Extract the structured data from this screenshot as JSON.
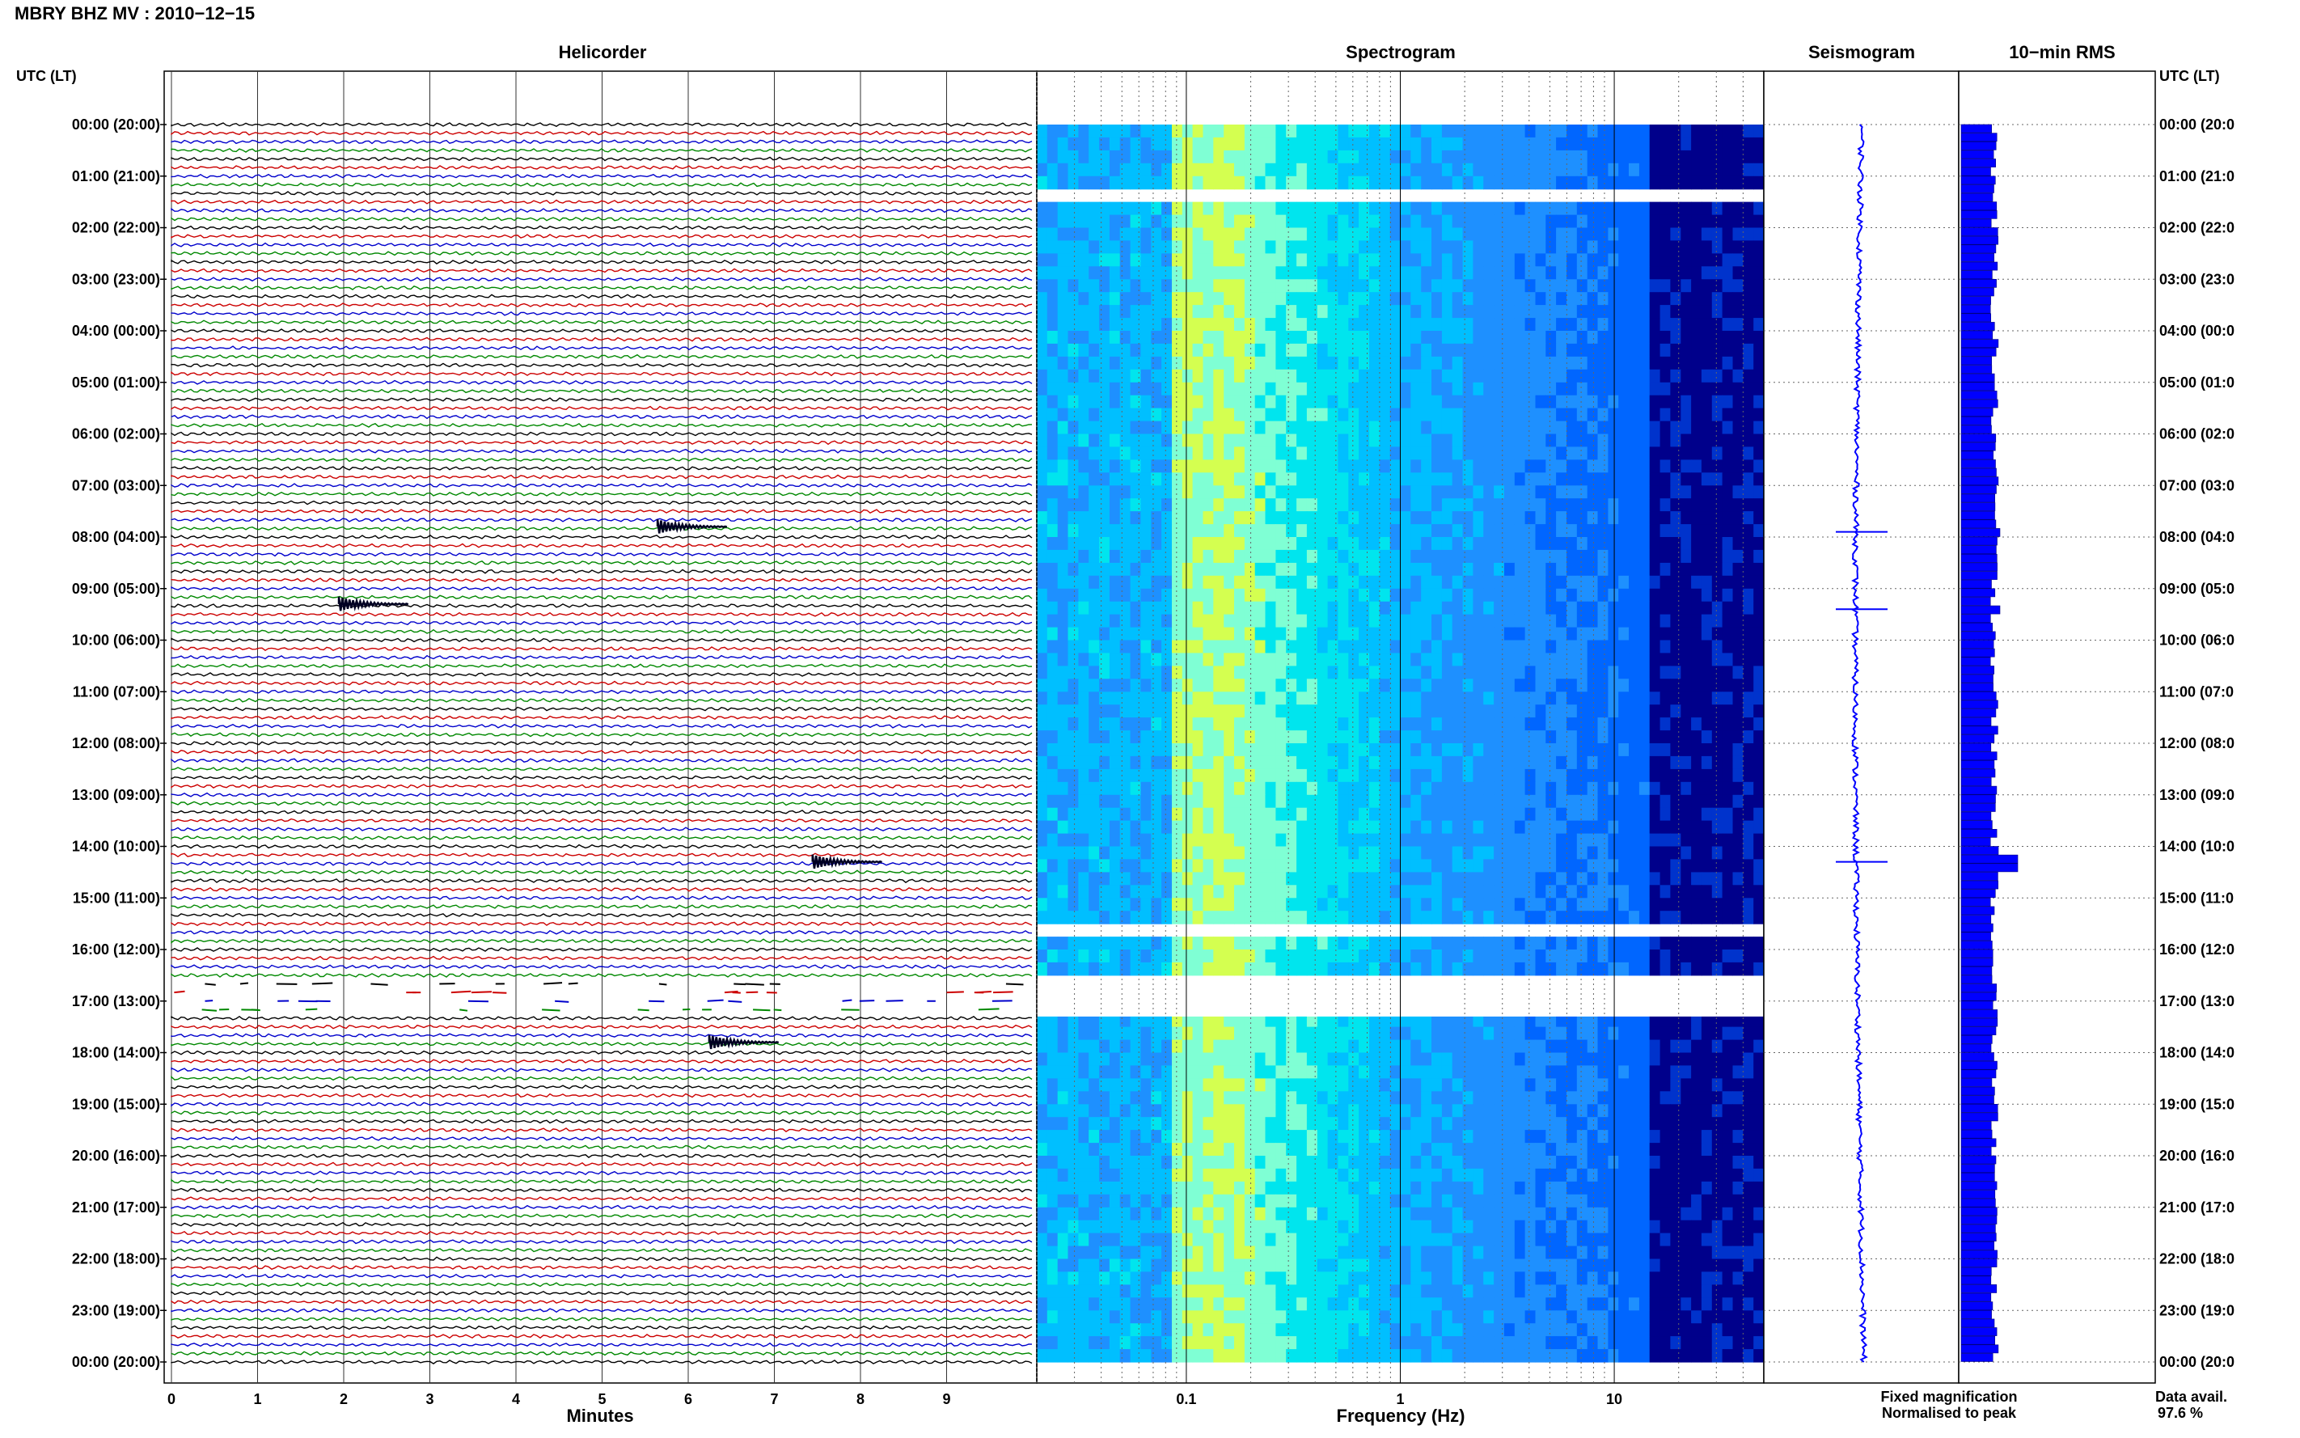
{
  "title": "MBRY BHZ MV : 2010−12−15",
  "panels": {
    "helicorder": "Helicorder",
    "spectrogram": "Spectrogram",
    "seismogram": "Seismogram",
    "rms": "10−min RMS"
  },
  "axis_header_left": "UTC (LT)",
  "axis_header_right": "UTC (LT)",
  "hour_labels": [
    "00:00 (20:00)",
    "01:00 (21:00)",
    "02:00 (22:00)",
    "03:00 (23:00)",
    "04:00 (00:00)",
    "05:00 (01:00)",
    "06:00 (02:00)",
    "07:00 (03:00)",
    "08:00 (04:00)",
    "09:00 (05:00)",
    "10:00 (06:00)",
    "11:00 (07:00)",
    "12:00 (08:00)",
    "13:00 (09:00)",
    "14:00 (10:00)",
    "15:00 (11:00)",
    "16:00 (12:00)",
    "17:00 (13:00)",
    "18:00 (14:00)",
    "19:00 (15:00)",
    "20:00 (16:00)",
    "21:00 (17:00)",
    "22:00 (18:00)",
    "23:00 (19:00)",
    "00:00 (20:00)"
  ],
  "hour_labels_right": [
    "00:00 (20:0",
    "01:00 (21:0",
    "02:00 (22:0",
    "03:00 (23:0",
    "04:00 (00:0",
    "05:00 (01:0",
    "06:00 (02:0",
    "07:00 (03:0",
    "08:00 (04:0",
    "09:00 (05:0",
    "10:00 (06:0",
    "11:00 (07:0",
    "12:00 (08:0",
    "13:00 (09:0",
    "14:00 (10:0",
    "15:00 (11:0",
    "16:00 (12:0",
    "17:00 (13:0",
    "18:00 (14:0",
    "19:00 (15:0",
    "20:00 (16:0",
    "21:00 (17:0",
    "22:00 (18:0",
    "23:00 (19:0",
    "00:00 (20:0"
  ],
  "legend": {
    "fixed": "Fixed magnification",
    "normalised": "Normalised to peak",
    "fixed_color": "#0000ff",
    "normalised_color": "#ff0000"
  },
  "data_avail_label": "Data avail.",
  "data_avail_value": "97.6 %",
  "chart_data": [
    {
      "type": "line",
      "panel": "Helicorder",
      "xlabel": "Minutes",
      "x_ticks": [
        0,
        1,
        2,
        3,
        4,
        5,
        6,
        7,
        8,
        9
      ],
      "xlim": [
        0,
        10
      ],
      "ylim_hours": [
        0,
        24
      ],
      "rows_per_hour": 6,
      "trace_colors": [
        "#000000",
        "#cc0000",
        "#0000cc",
        "#008800"
      ],
      "events": [
        {
          "hour": 7.8,
          "minute": 5.7
        },
        {
          "hour": 9.3,
          "minute": 2.0
        },
        {
          "hour": 14.3,
          "minute": 7.5
        },
        {
          "hour": 17.8,
          "minute": 6.3
        }
      ],
      "gaps_hours": [
        [
          16.6,
          17.3
        ]
      ]
    },
    {
      "type": "heatmap",
      "panel": "Spectrogram",
      "xlabel": "Frequency (Hz)",
      "x_scale": "log",
      "xlim": [
        0.02,
        50
      ],
      "x_ticks": [
        0.1,
        1,
        10
      ],
      "x_tick_labels": [
        "0.1",
        "1",
        "10"
      ],
      "ylim_hours": [
        0,
        24
      ],
      "colormap": [
        "#00008b",
        "#0033cc",
        "#0066ff",
        "#1e90ff",
        "#00bfff",
        "#00e5ee",
        "#7fffd4",
        "#d4ff50"
      ],
      "gaps_hours": [
        [
          1.3,
          1.45
        ],
        [
          15.6,
          15.65
        ],
        [
          16.6,
          17.3
        ]
      ]
    },
    {
      "type": "line",
      "panel": "Seismogram",
      "ylim_hours": [
        0,
        24
      ],
      "spikes_hours": [
        7.9,
        9.4,
        14.3
      ]
    },
    {
      "type": "bar",
      "panel": "10-min RMS",
      "ylim_hours": [
        0,
        24
      ],
      "spikes_hours": [
        7.9,
        9.4,
        14.3
      ]
    }
  ]
}
